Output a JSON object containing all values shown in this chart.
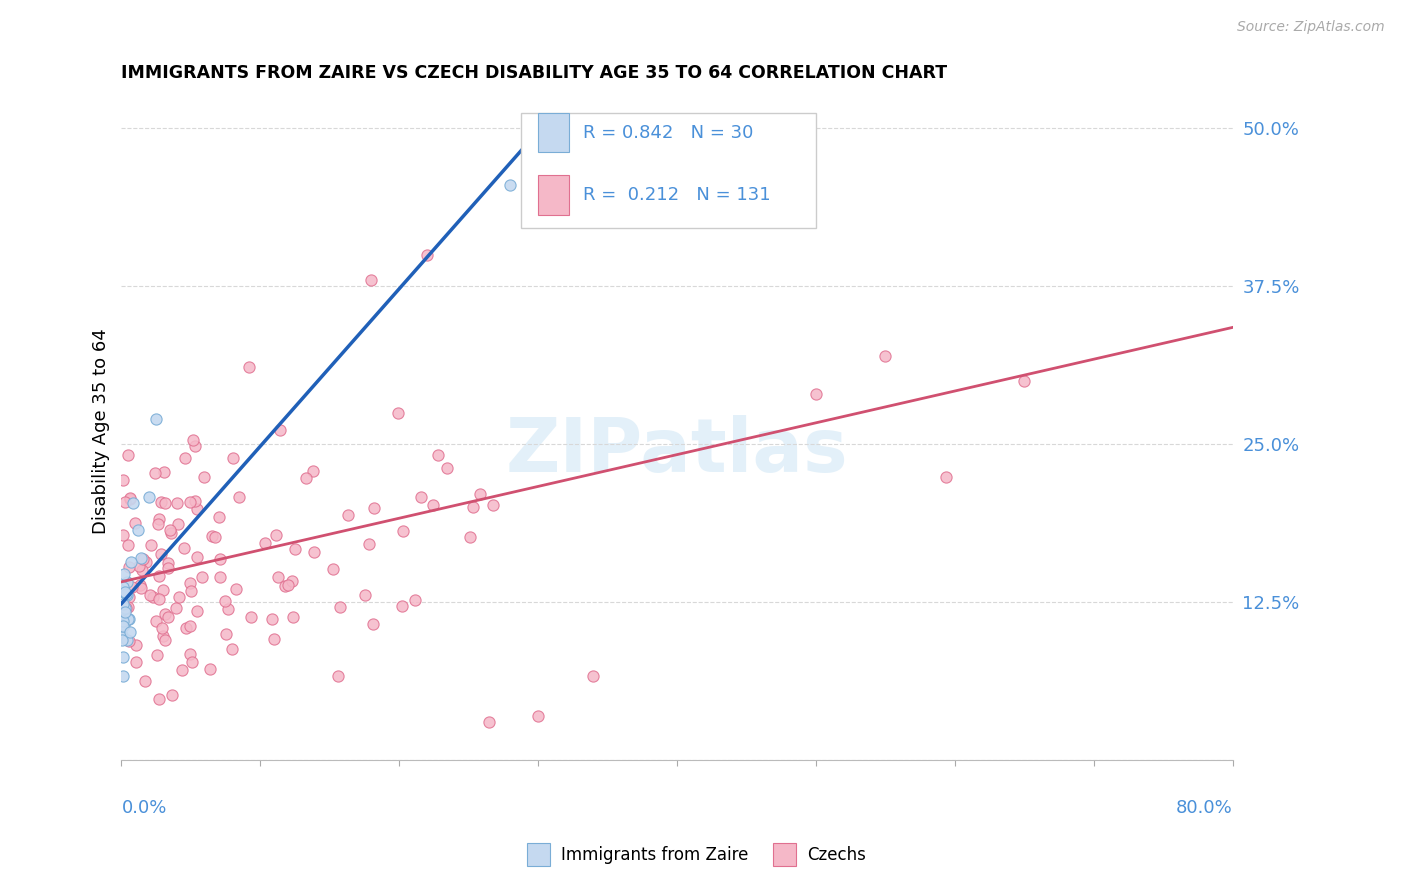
{
  "title": "IMMIGRANTS FROM ZAIRE VS CZECH DISABILITY AGE 35 TO 64 CORRELATION CHART",
  "source": "Source: ZipAtlas.com",
  "ylabel": "Disability Age 35 to 64",
  "r_zaire": 0.842,
  "n_zaire": 30,
  "r_czech": 0.212,
  "n_czech": 131,
  "color_zaire_fill": "#c5d9f0",
  "color_zaire_edge": "#7aadd6",
  "color_zaire_line": "#2060b8",
  "color_czech_fill": "#f5b8c8",
  "color_czech_edge": "#e07090",
  "color_czech_line": "#d05070",
  "color_blue_text": "#4a90d9",
  "color_axis_label": "#4a90d9",
  "background": "#ffffff",
  "grid_color": "#d8d8d8",
  "xlim": [
    0.0,
    0.8
  ],
  "ylim": [
    0.0,
    0.52
  ],
  "legend1_label": "Immigrants from Zaire",
  "legend2_label": "Czechs",
  "watermark": "ZIPatlas"
}
